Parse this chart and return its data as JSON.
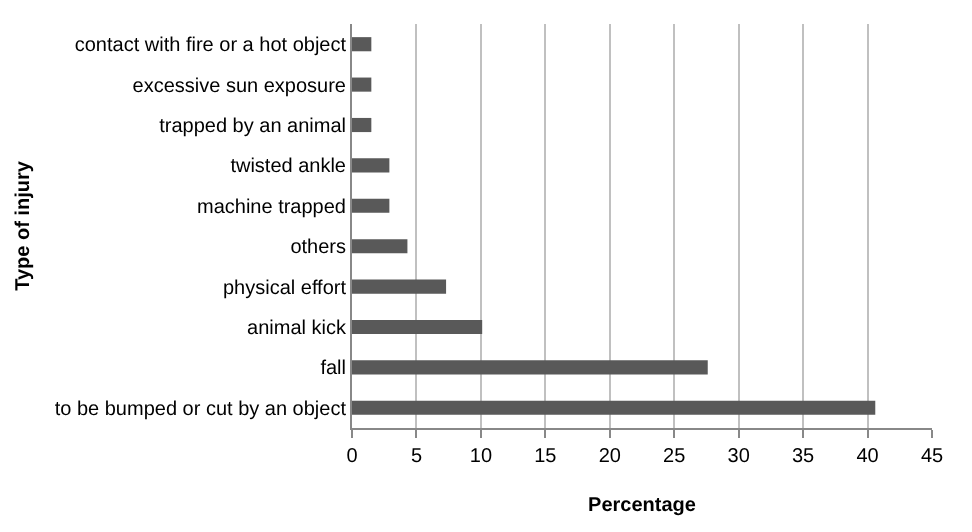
{
  "chart_data": {
    "type": "bar",
    "orientation": "horizontal",
    "xlabel": "Percentage",
    "ylabel": "Type of injury",
    "categories": [
      "contact with fire or a hot object",
      "excessive sun exposure",
      "trapped by an animal",
      "twisted ankle",
      "machine trapped",
      "others",
      "physical effort",
      "animal kick",
      "fall",
      "to be bumped or cut by an object"
    ],
    "values": [
      1.5,
      1.5,
      1.5,
      2.9,
      2.9,
      4.3,
      7.3,
      10.1,
      27.6,
      40.6
    ],
    "color": "#595959",
    "xlim": [
      0,
      45
    ],
    "xticks": [
      0,
      5,
      10,
      15,
      20,
      25,
      30,
      35,
      40,
      45
    ],
    "grid": "x",
    "legend": false
  }
}
